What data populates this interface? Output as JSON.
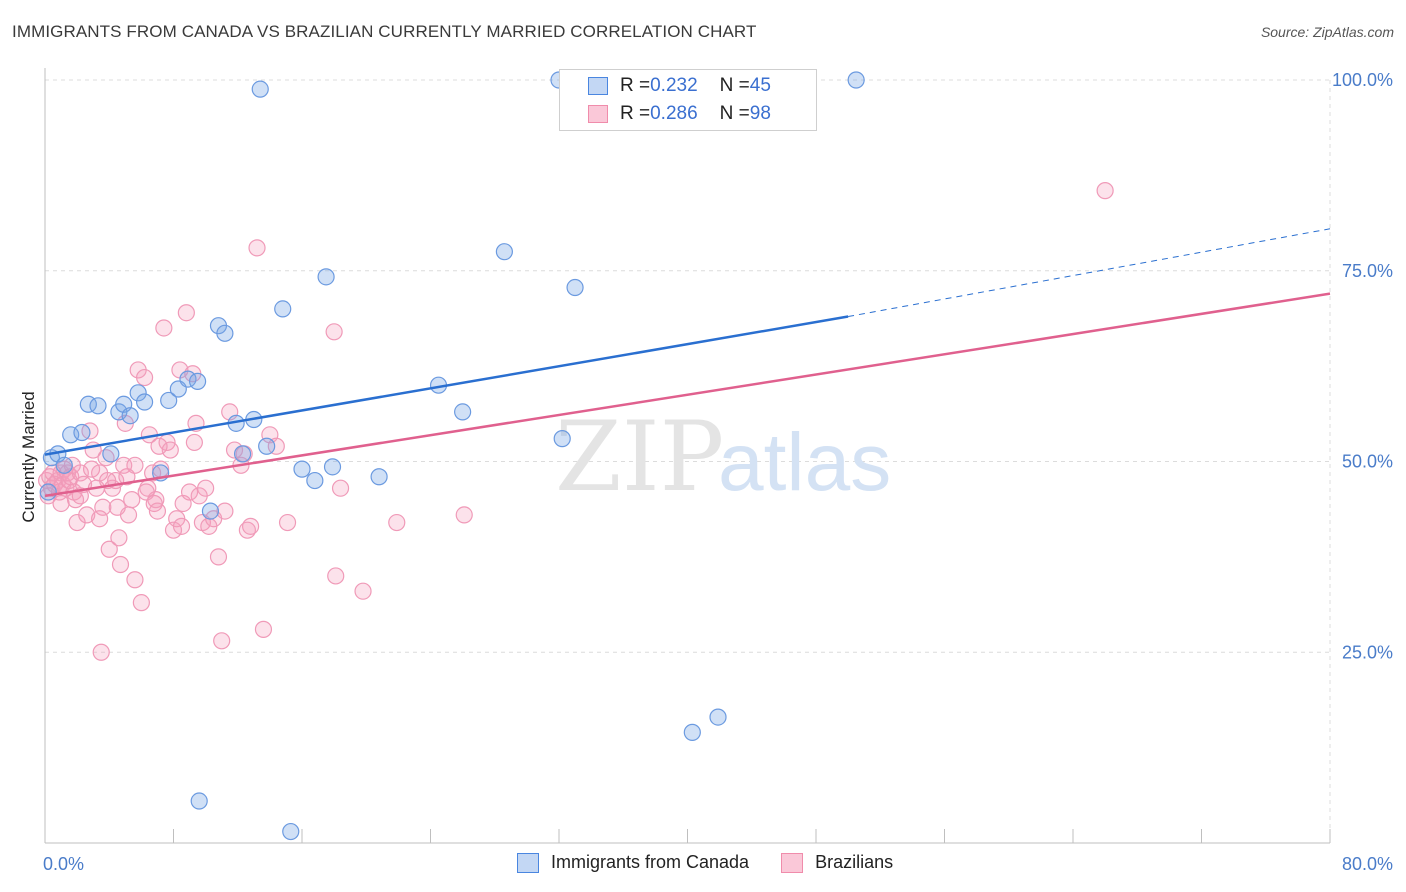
{
  "title": "IMMIGRANTS FROM CANADA VS BRAZILIAN CURRENTLY MARRIED CORRELATION CHART",
  "source": "Source: ZipAtlas.com",
  "watermark": {
    "zip": "ZIP",
    "atlas": "atlas"
  },
  "legend_top": [
    {
      "r_label": "R = ",
      "r_value": "0.232",
      "n_label": "N = ",
      "n_value": "45"
    },
    {
      "r_label": "R = ",
      "r_value": "0.286",
      "n_label": "N = ",
      "n_value": "98"
    }
  ],
  "chart_data": {
    "type": "scatter",
    "title": "IMMIGRANTS FROM CANADA VS BRAZILIAN CURRENTLY MARRIED CORRELATION CHART",
    "xlabel": "",
    "ylabel": "Currently Married",
    "xlim": [
      0,
      80
    ],
    "ylim": [
      0,
      100
    ],
    "x_ticks": [
      "0.0%",
      "80.0%"
    ],
    "y_ticks": [
      {
        "value": 100,
        "label": "100.0%"
      },
      {
        "value": 75,
        "label": "75.0%"
      },
      {
        "value": 50,
        "label": "50.0%"
      },
      {
        "value": 25,
        "label": "25.0%"
      }
    ],
    "grid": true,
    "legend_position": "bottom",
    "colors": {
      "canada": "#4a86e0",
      "canada_line": "#2a6fd0",
      "brazil": "#f08cab",
      "brazil_line": "#e0608e"
    },
    "series": [
      {
        "name": "Immigrants from Canada",
        "r": 0.232,
        "n": 45,
        "trend": {
          "x": [
            0,
            50
          ],
          "y": [
            50.9,
            69.0
          ],
          "dashed_extension": {
            "x": [
              50,
              80
            ],
            "y": [
              69.0,
              80.5
            ]
          }
        },
        "points": [
          [
            0.2,
            46.0
          ],
          [
            0.4,
            50.5
          ],
          [
            0.8,
            51.0
          ],
          [
            1.2,
            49.5
          ],
          [
            1.6,
            53.5
          ],
          [
            2.3,
            53.8
          ],
          [
            2.7,
            57.5
          ],
          [
            3.3,
            57.3
          ],
          [
            4.1,
            51.0
          ],
          [
            4.6,
            56.5
          ],
          [
            4.9,
            57.5
          ],
          [
            5.3,
            56.0
          ],
          [
            5.8,
            59.0
          ],
          [
            6.2,
            57.8
          ],
          [
            7.2,
            48.5
          ],
          [
            7.7,
            58.0
          ],
          [
            8.3,
            59.5
          ],
          [
            8.9,
            60.8
          ],
          [
            9.5,
            60.5
          ],
          [
            10.3,
            43.5
          ],
          [
            10.8,
            67.8
          ],
          [
            11.2,
            66.8
          ],
          [
            11.9,
            55.0
          ],
          [
            12.3,
            51.0
          ],
          [
            13.0,
            55.5
          ],
          [
            13.8,
            52.0
          ],
          [
            14.8,
            70.0
          ],
          [
            16.0,
            49.0
          ],
          [
            16.8,
            47.5
          ],
          [
            17.5,
            74.2
          ],
          [
            17.9,
            49.3
          ],
          [
            20.8,
            48.0
          ],
          [
            24.5,
            60.0
          ],
          [
            26.0,
            56.5
          ],
          [
            28.6,
            77.5
          ],
          [
            32.2,
            53.0
          ],
          [
            33.0,
            72.8
          ],
          [
            40.3,
            14.5
          ],
          [
            41.9,
            16.5
          ],
          [
            9.6,
            5.5
          ],
          [
            15.3,
            1.5
          ],
          [
            13.4,
            98.8
          ],
          [
            32.0,
            100.0
          ],
          [
            47.0,
            100.0
          ],
          [
            50.5,
            100.0
          ]
        ]
      },
      {
        "name": "Brazilians",
        "r": 0.286,
        "n": 98,
        "trend": {
          "x": [
            0,
            80
          ],
          "y": [
            45.5,
            72.0
          ]
        },
        "points": [
          [
            0.1,
            47.5
          ],
          [
            0.2,
            45.5
          ],
          [
            0.3,
            48.0
          ],
          [
            0.4,
            46.5
          ],
          [
            0.5,
            48.5
          ],
          [
            0.6,
            47.0
          ],
          [
            0.8,
            47.5
          ],
          [
            0.9,
            46.0
          ],
          [
            1.0,
            48.5
          ],
          [
            1.1,
            47.0
          ],
          [
            1.2,
            49.0
          ],
          [
            1.3,
            46.5
          ],
          [
            1.4,
            48.5
          ],
          [
            1.5,
            47.5
          ],
          [
            1.6,
            48.0
          ],
          [
            1.7,
            49.5
          ],
          [
            1.8,
            46.0
          ],
          [
            1.9,
            45.0
          ],
          [
            2.0,
            42.0
          ],
          [
            2.2,
            48.5
          ],
          [
            2.4,
            47.0
          ],
          [
            2.6,
            43.0
          ],
          [
            2.8,
            54.0
          ],
          [
            3.0,
            51.5
          ],
          [
            3.2,
            46.5
          ],
          [
            3.4,
            48.5
          ],
          [
            3.6,
            44.0
          ],
          [
            3.8,
            50.5
          ],
          [
            4.0,
            38.5
          ],
          [
            4.2,
            46.5
          ],
          [
            4.4,
            47.5
          ],
          [
            4.5,
            44.0
          ],
          [
            4.7,
            36.5
          ],
          [
            4.9,
            49.5
          ],
          [
            5.0,
            55.0
          ],
          [
            5.2,
            43.0
          ],
          [
            5.4,
            45.0
          ],
          [
            5.6,
            49.5
          ],
          [
            5.8,
            62.0
          ],
          [
            6.0,
            31.5
          ],
          [
            6.2,
            61.0
          ],
          [
            6.4,
            46.5
          ],
          [
            6.5,
            53.5
          ],
          [
            6.7,
            48.5
          ],
          [
            6.9,
            45.0
          ],
          [
            7.0,
            43.5
          ],
          [
            7.2,
            49.0
          ],
          [
            7.4,
            67.5
          ],
          [
            7.6,
            52.5
          ],
          [
            7.8,
            51.5
          ],
          [
            8.0,
            41.0
          ],
          [
            8.2,
            42.5
          ],
          [
            8.4,
            62.0
          ],
          [
            8.6,
            44.5
          ],
          [
            8.8,
            69.5
          ],
          [
            9.0,
            46.0
          ],
          [
            9.2,
            61.5
          ],
          [
            9.4,
            55.0
          ],
          [
            9.6,
            45.5
          ],
          [
            9.8,
            42.0
          ],
          [
            10.0,
            46.5
          ],
          [
            10.2,
            41.5
          ],
          [
            10.5,
            42.5
          ],
          [
            10.8,
            37.5
          ],
          [
            11.0,
            26.5
          ],
          [
            11.2,
            43.5
          ],
          [
            11.5,
            56.5
          ],
          [
            11.8,
            51.5
          ],
          [
            12.2,
            49.5
          ],
          [
            12.4,
            51.0
          ],
          [
            12.6,
            41.0
          ],
          [
            12.8,
            41.5
          ],
          [
            13.2,
            78.0
          ],
          [
            13.6,
            28.0
          ],
          [
            14.0,
            53.5
          ],
          [
            14.4,
            52.0
          ],
          [
            15.1,
            42.0
          ],
          [
            18.0,
            67.0
          ],
          [
            18.1,
            35.0
          ],
          [
            18.4,
            46.5
          ],
          [
            19.8,
            33.0
          ],
          [
            21.9,
            42.0
          ],
          [
            26.1,
            43.0
          ],
          [
            66.0,
            85.5
          ],
          [
            1.0,
            44.5
          ],
          [
            2.2,
            45.5
          ],
          [
            3.4,
            42.5
          ],
          [
            4.6,
            40.0
          ],
          [
            5.6,
            34.5
          ],
          [
            6.3,
            46.0
          ],
          [
            7.1,
            52.0
          ],
          [
            2.9,
            49.0
          ],
          [
            3.9,
            47.5
          ],
          [
            5.1,
            48.0
          ],
          [
            6.8,
            44.5
          ],
          [
            8.5,
            41.5
          ],
          [
            9.3,
            52.5
          ],
          [
            3.5,
            25.0
          ]
        ]
      }
    ]
  },
  "bottom_legend": [
    "Immigrants from Canada",
    "Brazilians"
  ]
}
